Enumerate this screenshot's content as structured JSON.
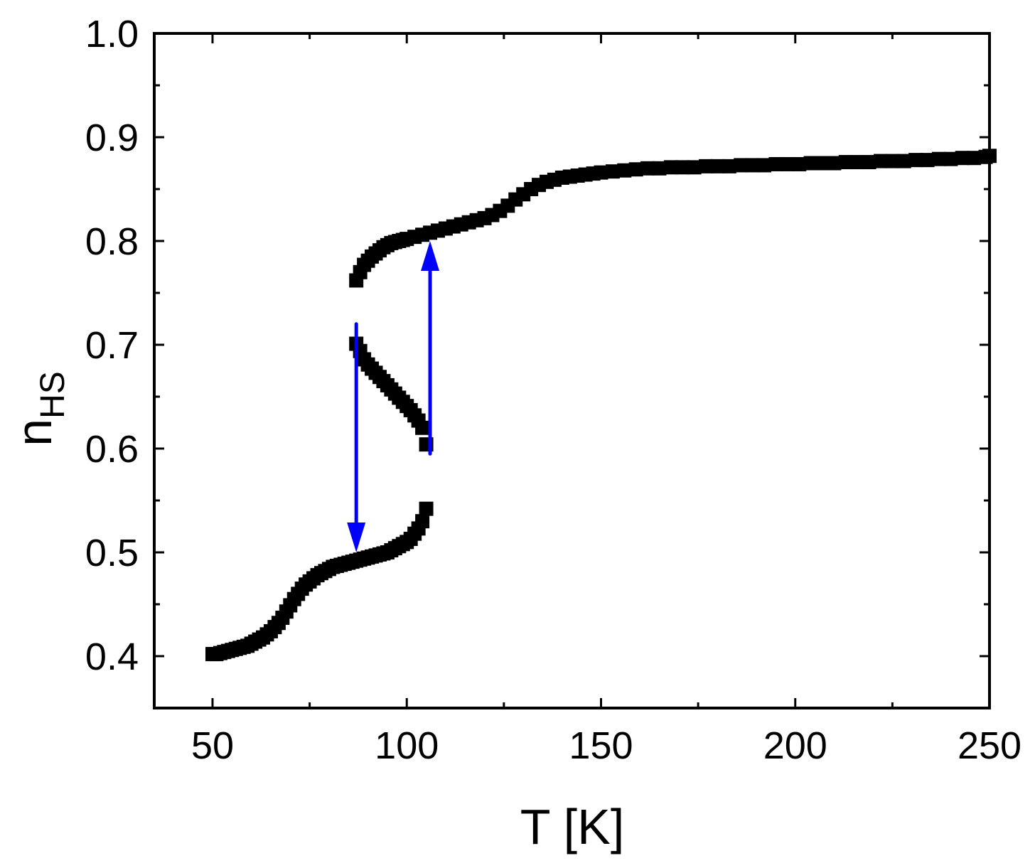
{
  "chart_data": {
    "type": "scatter",
    "xlabel": "T [K]",
    "ylabel": {
      "main": "n",
      "subscript": "HS"
    },
    "xlim": [
      35,
      250
    ],
    "ylim": [
      0.35,
      1.0
    ],
    "xticks": [
      50,
      100,
      150,
      200,
      250
    ],
    "xtick_labels": [
      "50",
      "100",
      "150",
      "200",
      "250"
    ],
    "yticks": [
      0.4,
      0.5,
      0.6,
      0.7,
      0.8,
      0.9,
      1.0
    ],
    "ytick_labels": [
      "0.4",
      "0.5",
      "0.6",
      "0.7",
      "0.8",
      "0.9",
      "1.0"
    ],
    "x_minor_step": 25,
    "y_minor_step": 0.05,
    "grid": false,
    "marker_color": "#000000",
    "arrow_color": "#0000ff",
    "series": [
      {
        "marker": "square",
        "x": [
          50,
          51,
          52,
          53,
          54,
          55,
          56,
          57,
          58,
          59,
          60,
          61,
          62,
          63,
          64,
          65,
          66,
          67,
          68,
          69,
          70,
          71,
          72,
          73,
          74,
          75,
          76,
          77,
          78,
          79,
          80,
          81,
          82,
          83,
          84,
          85,
          86,
          87,
          88,
          89,
          90,
          91,
          92,
          93,
          94,
          95,
          96,
          97,
          98,
          99,
          100,
          101,
          102,
          103,
          104,
          105
        ],
        "y": [
          0.402,
          0.402,
          0.403,
          0.404,
          0.405,
          0.406,
          0.407,
          0.408,
          0.409,
          0.41,
          0.412,
          0.414,
          0.416,
          0.418,
          0.421,
          0.424,
          0.428,
          0.432,
          0.437,
          0.443,
          0.449,
          0.455,
          0.46,
          0.465,
          0.469,
          0.472,
          0.475,
          0.478,
          0.48,
          0.482,
          0.484,
          0.486,
          0.487,
          0.488,
          0.489,
          0.49,
          0.491,
          0.492,
          0.493,
          0.494,
          0.495,
          0.496,
          0.497,
          0.498,
          0.499,
          0.5,
          0.502,
          0.504,
          0.506,
          0.508,
          0.51,
          0.513,
          0.518,
          0.523,
          0.53,
          0.542
        ]
      },
      {
        "marker": "square",
        "x": [
          87,
          88,
          89,
          90,
          91,
          92,
          93,
          94,
          95,
          96,
          97,
          98,
          99,
          100,
          101,
          102,
          103,
          104,
          105
        ],
        "y": [
          0.701,
          0.694,
          0.686,
          0.681,
          0.677,
          0.673,
          0.669,
          0.665,
          0.661,
          0.657,
          0.653,
          0.649,
          0.645,
          0.641,
          0.637,
          0.632,
          0.627,
          0.62,
          0.604
        ]
      },
      {
        "marker": "square",
        "x": [
          87,
          88,
          89,
          90,
          91,
          92,
          93,
          94,
          95,
          96,
          97,
          98,
          99,
          100,
          102,
          104,
          106,
          108,
          110,
          112,
          114,
          116,
          118,
          120,
          122,
          124,
          126,
          128,
          130,
          132,
          134,
          136,
          138,
          140,
          142,
          144,
          146,
          148,
          150,
          153,
          156,
          159,
          162,
          165,
          168,
          171,
          174,
          177,
          180,
          183,
          186,
          189,
          192,
          195,
          198,
          201,
          204,
          207,
          210,
          213,
          216,
          219,
          222,
          225,
          228,
          231,
          234,
          237,
          240,
          243,
          246,
          249,
          250
        ],
        "y": [
          0.762,
          0.77,
          0.777,
          0.781,
          0.785,
          0.788,
          0.791,
          0.794,
          0.796,
          0.798,
          0.799,
          0.8,
          0.801,
          0.802,
          0.804,
          0.806,
          0.808,
          0.81,
          0.812,
          0.814,
          0.816,
          0.818,
          0.82,
          0.822,
          0.825,
          0.829,
          0.834,
          0.84,
          0.845,
          0.85,
          0.854,
          0.857,
          0.859,
          0.861,
          0.862,
          0.863,
          0.864,
          0.865,
          0.866,
          0.867,
          0.868,
          0.869,
          0.87,
          0.87,
          0.871,
          0.871,
          0.871,
          0.872,
          0.872,
          0.872,
          0.873,
          0.873,
          0.873,
          0.874,
          0.874,
          0.874,
          0.875,
          0.875,
          0.875,
          0.876,
          0.876,
          0.876,
          0.877,
          0.877,
          0.877,
          0.878,
          0.878,
          0.879,
          0.879,
          0.88,
          0.88,
          0.881,
          0.882
        ]
      }
    ],
    "arrows": [
      {
        "x": 87,
        "y_from": 0.72,
        "y_to": 0.5
      },
      {
        "x": 106,
        "y_from": 0.595,
        "y_to": 0.8
      }
    ]
  }
}
